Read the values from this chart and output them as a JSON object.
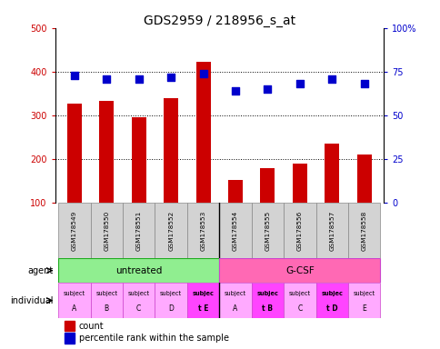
{
  "title": "GDS2959 / 218956_s_at",
  "samples": [
    "GSM178549",
    "GSM178550",
    "GSM178551",
    "GSM178552",
    "GSM178553",
    "GSM178554",
    "GSM178555",
    "GSM178556",
    "GSM178557",
    "GSM178558"
  ],
  "counts": [
    328,
    333,
    295,
    340,
    422,
    152,
    180,
    190,
    235,
    210
  ],
  "percentiles": [
    73,
    71,
    71,
    72,
    74,
    64,
    65,
    68,
    71,
    68
  ],
  "ylim_left": [
    100,
    500
  ],
  "ylim_right": [
    0,
    100
  ],
  "yticks_left": [
    100,
    200,
    300,
    400,
    500
  ],
  "yticks_right": [
    0,
    25,
    50,
    75,
    100
  ],
  "bar_color": "#cc0000",
  "dot_color": "#0000cc",
  "agent_labels": [
    "untreated",
    "G-CSF"
  ],
  "agent_colors": [
    "#90ee90",
    "#ff69b4"
  ],
  "individual_line1": [
    "subject",
    "subject",
    "subject",
    "subject",
    "subjec",
    "subject",
    "subjec",
    "subject",
    "subjec",
    "subject"
  ],
  "individual_line2": [
    "A",
    "B",
    "C",
    "D",
    "t E",
    "A",
    "t B",
    "C",
    "t D",
    "E"
  ],
  "individual_bold": [
    false,
    false,
    false,
    false,
    true,
    false,
    true,
    false,
    true,
    false
  ],
  "individual_colors": [
    "#ffaaff",
    "#ffaaff",
    "#ffaaff",
    "#ffaaff",
    "#ff44ff",
    "#ffaaff",
    "#ff44ff",
    "#ffaaff",
    "#ff44ff",
    "#ffaaff"
  ],
  "background_color": "#ffffff",
  "label_bg_color": "#d3d3d3",
  "green_color": "#90ee90",
  "magenta_color": "#ff69b4"
}
